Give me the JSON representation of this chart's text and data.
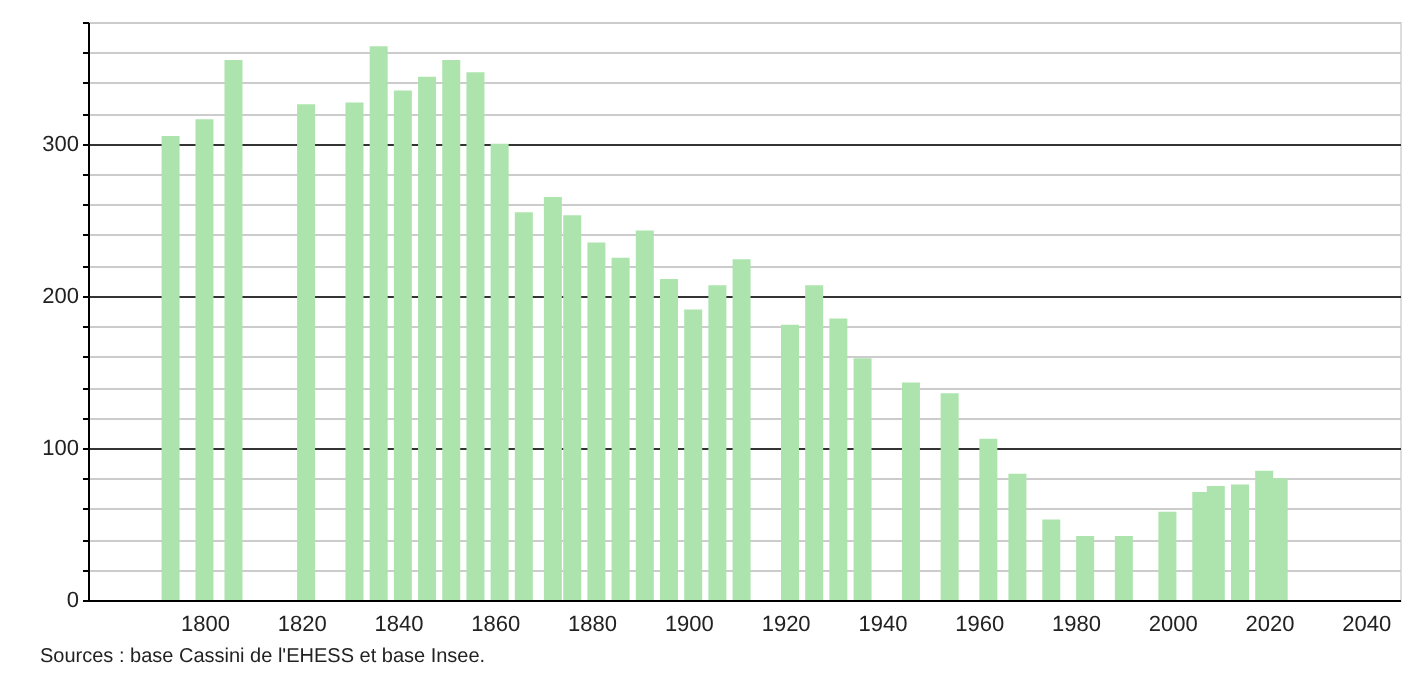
{
  "chart_data": {
    "type": "bar",
    "x": [
      1793,
      1800,
      1806,
      1821,
      1831,
      1836,
      1841,
      1846,
      1851,
      1856,
      1861,
      1866,
      1872,
      1876,
      1881,
      1886,
      1891,
      1896,
      1901,
      1906,
      1911,
      1921,
      1926,
      1931,
      1936,
      1946,
      1954,
      1962,
      1968,
      1975,
      1982,
      1990,
      1999,
      2006,
      2009,
      2014,
      2019,
      2022
    ],
    "values": [
      305,
      316,
      355,
      326,
      327,
      364,
      335,
      344,
      355,
      347,
      300,
      255,
      265,
      253,
      235,
      225,
      243,
      211,
      191,
      207,
      224,
      181,
      207,
      185,
      159,
      143,
      136,
      106,
      83,
      53,
      42,
      42,
      58,
      71,
      75,
      76,
      85,
      80
    ],
    "color": "#ade4ad",
    "xlim": [
      1778,
      2045
    ],
    "xticks": [
      1800,
      1820,
      1840,
      1860,
      1880,
      1900,
      1920,
      1940,
      1960,
      1980,
      2000,
      2020,
      2040
    ],
    "ylim": [
      0,
      380
    ],
    "yticks": [
      0,
      {
        "value": 20,
        "label": null
      },
      {
        "value": 40,
        "label": null
      },
      {
        "value": 60,
        "label": null
      },
      {
        "value": 80,
        "label": null
      },
      100,
      {
        "value": 120,
        "label": null
      },
      {
        "value": 140,
        "label": null
      },
      {
        "value": 160,
        "label": null
      },
      {
        "value": 180,
        "label": null
      },
      200,
      {
        "value": 220,
        "label": null
      },
      {
        "value": 240,
        "label": null
      },
      {
        "value": 260,
        "label": null
      },
      {
        "value": 280,
        "label": null
      },
      300,
      {
        "value": 320,
        "label": null
      },
      {
        "value": 340,
        "label": null
      },
      {
        "value": 360,
        "label": null
      },
      {
        "value": 380,
        "label": null
      }
    ],
    "grid": "y",
    "annotations": [
      "Sources : base Cassini de l'EHESS et base Insee."
    ]
  }
}
